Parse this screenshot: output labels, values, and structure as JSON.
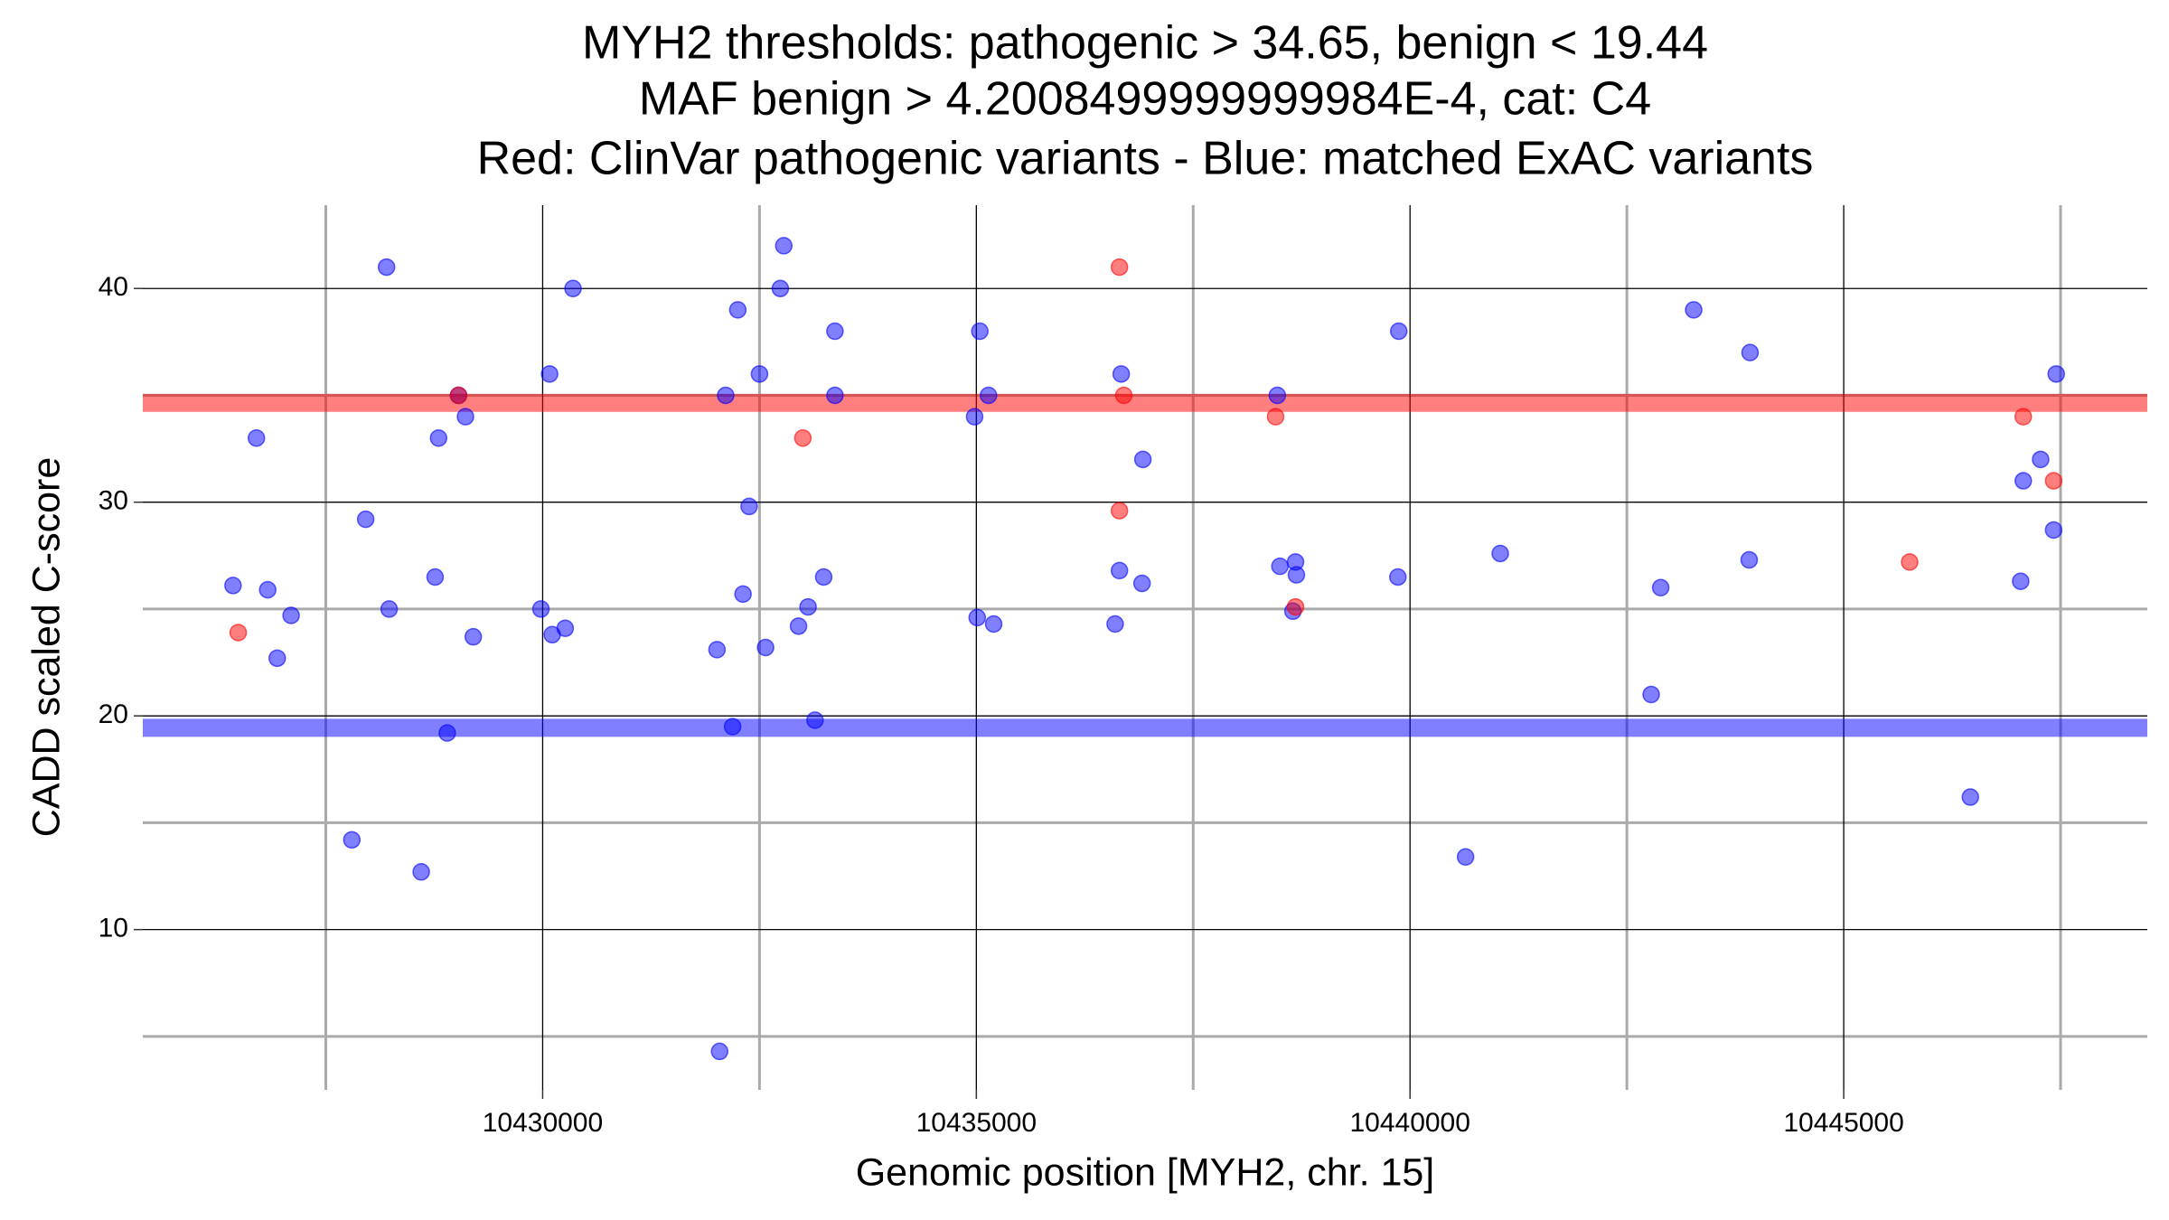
{
  "chart_data": {
    "type": "scatter",
    "title": [
      "MYH2 thresholds: pathogenic > 34.65, benign < 19.44",
      "MAF benign > 4.2008499999999984E-4, cat: C4",
      "Red: ClinVar pathogenic variants - Blue: matched ExAC variants"
    ],
    "x_label": "Genomic position [MYH2, chr. 15]",
    "y_label": "CADD scaled C-score",
    "xlim": [
      10425390,
      10448500
    ],
    "ylim": [
      2.5,
      43.9
    ],
    "xticks": [
      10430000,
      10435000,
      10440000,
      10445000
    ],
    "xminor_ticks": [
      10427500,
      10432500,
      10437500,
      10442500,
      10447500
    ],
    "yticks": [
      10,
      20,
      30,
      40
    ],
    "yminor_ticks": [
      5,
      15,
      25,
      35
    ],
    "grid": true,
    "hlines": [
      {
        "value": 34.65,
        "color": "#ff0000"
      },
      {
        "value": 19.44,
        "color": "#0000ff"
      }
    ],
    "series": [
      {
        "color": "#0000ff",
        "x": [
          10426430,
          10426700,
          10426830,
          10426940,
          10427100,
          10427800,
          10427960,
          10428200,
          10428230,
          10428600,
          10428760,
          10428800,
          10428900,
          10429030,
          10429110,
          10429200,
          10429980,
          10430080,
          10430110,
          10430260,
          10430350,
          10432010,
          10432040,
          10432110,
          10432190,
          10432250,
          10432310,
          10432380,
          10432500,
          10432570,
          10432780,
          10432740,
          10432950,
          10433060,
          10433140,
          10433240,
          10433370,
          10433370,
          10434980,
          10435010,
          10435040,
          10435140,
          10435200,
          10436600,
          10436650,
          10436670,
          10436910,
          10436920,
          10438470,
          10438500,
          10438650,
          10438680,
          10438690,
          10439860,
          10439870,
          10440640,
          10441040,
          10442780,
          10442890,
          10443270,
          10443920,
          10443910,
          10446460,
          10447040,
          10447070,
          10447270,
          10447420,
          10447450
        ],
        "values": [
          26.1,
          33.0,
          25.9,
          22.7,
          24.7,
          14.2,
          29.2,
          41.0,
          25.0,
          12.7,
          26.5,
          33.0,
          19.2,
          35.0,
          34.0,
          23.7,
          25.0,
          36.0,
          23.8,
          24.1,
          40.0,
          23.1,
          4.3,
          35.0,
          19.5,
          39.0,
          25.7,
          29.8,
          36.0,
          23.2,
          42.0,
          40.0,
          24.2,
          25.1,
          19.8,
          26.5,
          38.0,
          35.0,
          34.0,
          24.6,
          38.0,
          35.0,
          24.3,
          24.3,
          26.8,
          36.0,
          26.2,
          32.0,
          35.0,
          27.0,
          24.9,
          27.2,
          26.6,
          26.5,
          38.0,
          13.4,
          27.6,
          21.0,
          26.0,
          39.0,
          37.0,
          27.3,
          16.2,
          26.3,
          31.0,
          32.0,
          28.7,
          36.0
        ]
      },
      {
        "color": "#ff0000",
        "x": [
          10426490,
          10429030,
          10433000,
          10436650,
          10436650,
          10436700,
          10438450,
          10438680,
          10445760,
          10447070,
          10447420
        ],
        "values": [
          23.9,
          35.0,
          33.0,
          41.0,
          29.6,
          35.0,
          34.0,
          25.1,
          27.2,
          34.0,
          31.0
        ]
      }
    ]
  }
}
